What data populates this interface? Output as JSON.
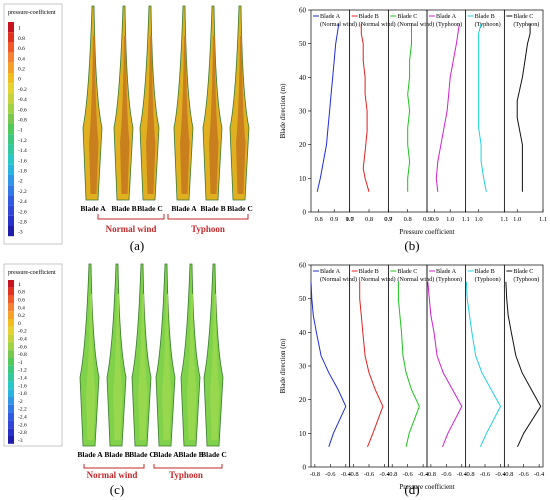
{
  "legend_scale": {
    "title": "pressure-coefficient",
    "ticks_a": [
      "1",
      "0.8",
      "0.6",
      "0.4",
      "0.2",
      "0",
      "-0.2",
      "-0.4",
      "-0.6",
      "-0.8",
      "-1",
      "-1.2",
      "-1.4",
      "-1.6",
      "-1.8",
      "-2",
      "-2.2",
      "-2.4",
      "-2.6",
      "-2.8",
      "-3"
    ],
    "ticks_c": [
      "1",
      "0.8",
      "0.6",
      "0.4",
      "0.2",
      "0",
      "-0.2",
      "-0.4",
      "-0.6",
      "-0.8",
      "-1",
      "-1.2",
      "-1.4",
      "-1.6",
      "-1.8",
      "-2",
      "-2.2",
      "-2.4",
      "-2.6",
      "-2.8",
      "-3"
    ],
    "colors": [
      "#c8141e",
      "#e0321e",
      "#f05a28",
      "#f58232",
      "#f5a028",
      "#f0be1e",
      "#e6d232",
      "#c8d23c",
      "#a0d246",
      "#78c850",
      "#50c85a",
      "#3cc87d",
      "#32c8a0",
      "#28c8c8",
      "#28b4dc",
      "#3296e6",
      "#3278e6",
      "#325ae1",
      "#3246d7",
      "#2832c8",
      "#1e1eaa"
    ]
  },
  "contour_a": {
    "blade_labels": [
      "Blade A",
      "Blade B",
      "Blade C",
      "Blade A",
      "Blade B",
      "Blade C"
    ],
    "group_normal": "Normal wind",
    "group_typhoon": "Typhoon",
    "caption": "(a)"
  },
  "contour_c": {
    "blade_labels": [
      "Blade A",
      "Blade B",
      "Blade C",
      "Blade A",
      "Blade B",
      "Blade C"
    ],
    "group_normal": "Normal wind",
    "group_typhoon": "Typhoon",
    "caption": "(c)"
  },
  "chart_data": [
    {
      "type": "line",
      "panel": "(b)",
      "ylabel": "Blade direction (m)",
      "xlabel": "Pressure coefficient",
      "ylim": [
        0,
        60
      ],
      "yticks": [
        0,
        10,
        20,
        30,
        40,
        50,
        60
      ],
      "subplots": [
        {
          "legend": [
            "Blade A",
            "(Normal wind)"
          ],
          "color": "#1f2bd6",
          "xlim": [
            0.75,
            1.0
          ],
          "xticks": [
            "0.8",
            "0.9",
            "1.0"
          ],
          "x": [
            0.79,
            0.81,
            0.83,
            0.85,
            0.86,
            0.87,
            0.88,
            0.89,
            0.9,
            0.91,
            0.92,
            0.93
          ],
          "y": [
            6,
            10,
            15,
            20,
            25,
            30,
            35,
            40,
            45,
            50,
            53,
            56
          ]
        },
        {
          "legend": [
            "Blade B",
            "(Normal wind)"
          ],
          "color": "#e02020",
          "xlim": [
            0.7,
            0.9
          ],
          "xticks": [
            "0.7",
            "0.8",
            "0.9"
          ],
          "x": [
            0.8,
            0.78,
            0.77,
            0.78,
            0.79,
            0.79,
            0.78,
            0.78,
            0.77,
            0.77,
            0.76,
            0.76
          ],
          "y": [
            6,
            10,
            13,
            18,
            24,
            30,
            35,
            40,
            45,
            50,
            53,
            56
          ]
        },
        {
          "legend": [
            "Blade C",
            "(Normal wind)"
          ],
          "color": "#20c020",
          "xlim": [
            0.7,
            0.9
          ],
          "xticks": [
            "0.7",
            "0.8",
            "0.9"
          ],
          "x": [
            0.8,
            0.8,
            0.81,
            0.8,
            0.8,
            0.81,
            0.8,
            0.81,
            0.81,
            0.82,
            0.82,
            0.82
          ],
          "y": [
            6,
            10,
            15,
            20,
            25,
            30,
            35,
            40,
            45,
            50,
            53,
            56
          ]
        },
        {
          "legend": [
            "Blade A",
            "(Typhoon)"
          ],
          "color": "#d020d0",
          "xlim": [
            0.85,
            1.1
          ],
          "xticks": [
            "0.9",
            "1.0",
            "1.1"
          ],
          "x": [
            0.92,
            0.91,
            0.92,
            0.94,
            0.96,
            0.98,
            0.99,
            1.0,
            1.02,
            1.04,
            1.05,
            1.06
          ],
          "y": [
            6,
            10,
            15,
            20,
            25,
            30,
            35,
            40,
            45,
            50,
            53,
            56
          ]
        },
        {
          "legend": [
            "Blade B",
            "(Typhoon)"
          ],
          "color": "#20d0e0",
          "xlim": [
            0.95,
            1.1
          ],
          "xticks": [
            "1.0",
            "1.1"
          ],
          "x": [
            1.03,
            1.02,
            1.01,
            1.01,
            1.0,
            1.0,
            1.0,
            1.0,
            1.0,
            1.0,
            1.0,
            1.01
          ],
          "y": [
            6,
            10,
            15,
            20,
            25,
            30,
            35,
            40,
            45,
            50,
            53,
            56
          ]
        },
        {
          "legend": [
            "Blade C",
            "(Typhoon)"
          ],
          "color": "#111111",
          "xlim": [
            0.95,
            1.1
          ],
          "xticks": [
            "1.0",
            "1.1"
          ],
          "x": [
            1.02,
            1.02,
            1.02,
            1.02,
            1.01,
            1.0,
            1.0,
            1.02,
            1.03,
            1.04,
            1.05,
            1.05
          ],
          "y": [
            6,
            10,
            15,
            20,
            24,
            28,
            33,
            40,
            45,
            50,
            53,
            56
          ]
        }
      ],
      "caption": "(b)"
    },
    {
      "type": "line",
      "panel": "(d)",
      "ylabel": "Blade direction (m)",
      "xlabel": "Pressure coefficient",
      "ylim": [
        0,
        60
      ],
      "yticks": [
        0,
        10,
        20,
        30,
        40,
        50,
        60
      ],
      "subplots": [
        {
          "legend": [
            "Blade A",
            "(Normal wind)"
          ],
          "color": "#1f2bd6",
          "xlim": [
            -0.85,
            -0.35
          ],
          "xticks": [
            "-0.8",
            "-0.6",
            "-0.4"
          ],
          "x": [
            -0.62,
            -0.56,
            -0.4,
            -0.5,
            -0.62,
            -0.72,
            -0.78,
            -0.82,
            -0.84,
            -0.85
          ],
          "y": [
            6,
            10,
            18,
            23,
            28,
            33,
            40,
            45,
            50,
            55
          ]
        },
        {
          "legend": [
            "Blade B",
            "(Normal wind)"
          ],
          "color": "#e02020",
          "xlim": [
            -0.85,
            -0.35
          ],
          "xticks": [
            "-0.8",
            "-0.6",
            "-0.4"
          ],
          "x": [
            -0.62,
            -0.55,
            -0.42,
            -0.52,
            -0.6,
            -0.65,
            -0.68,
            -0.7,
            -0.72,
            -0.72
          ],
          "y": [
            6,
            10,
            18,
            23,
            28,
            33,
            40,
            45,
            50,
            55
          ]
        },
        {
          "legend": [
            "Blade C",
            "(Normal wind)"
          ],
          "color": "#20c020",
          "xlim": [
            -0.85,
            -0.35
          ],
          "xticks": [
            "-0.8",
            "-0.6",
            "-0.4"
          ],
          "x": [
            -0.62,
            -0.58,
            -0.45,
            -0.55,
            -0.62,
            -0.66,
            -0.68,
            -0.7,
            -0.72,
            -0.72
          ],
          "y": [
            6,
            10,
            18,
            23,
            28,
            33,
            40,
            45,
            50,
            55
          ]
        },
        {
          "legend": [
            "Blade A",
            "(Typhoon)"
          ],
          "color": "#d020d0",
          "xlim": [
            -0.85,
            -0.35
          ],
          "xticks": [
            "-0.8",
            "-0.6",
            "-0.4"
          ],
          "x": [
            -0.65,
            -0.58,
            -0.4,
            -0.52,
            -0.64,
            -0.72,
            -0.76,
            -0.8,
            -0.82,
            -0.84
          ],
          "y": [
            6,
            10,
            18,
            23,
            28,
            33,
            40,
            45,
            50,
            55
          ]
        },
        {
          "legend": [
            "Blade B",
            "(Typhoon)"
          ],
          "color": "#20d0e0",
          "xlim": [
            -0.85,
            -0.35
          ],
          "xticks": [
            "-0.8",
            "-0.6",
            "-0.4"
          ],
          "x": [
            -0.66,
            -0.58,
            -0.4,
            -0.52,
            -0.64,
            -0.72,
            -0.77,
            -0.8,
            -0.83,
            -0.84
          ],
          "y": [
            6,
            10,
            18,
            23,
            28,
            33,
            40,
            45,
            50,
            55
          ]
        },
        {
          "legend": [
            "Blade C",
            "(Typhoon)"
          ],
          "color": "#111111",
          "xlim": [
            -0.85,
            -0.35
          ],
          "xticks": [
            "-0.8",
            "-0.6",
            "-0.4"
          ],
          "x": [
            -0.68,
            -0.6,
            -0.38,
            -0.5,
            -0.62,
            -0.7,
            -0.76,
            -0.8,
            -0.82,
            -0.83
          ],
          "y": [
            6,
            10,
            18,
            23,
            28,
            33,
            40,
            45,
            50,
            55
          ]
        }
      ],
      "caption": "(d)"
    }
  ]
}
